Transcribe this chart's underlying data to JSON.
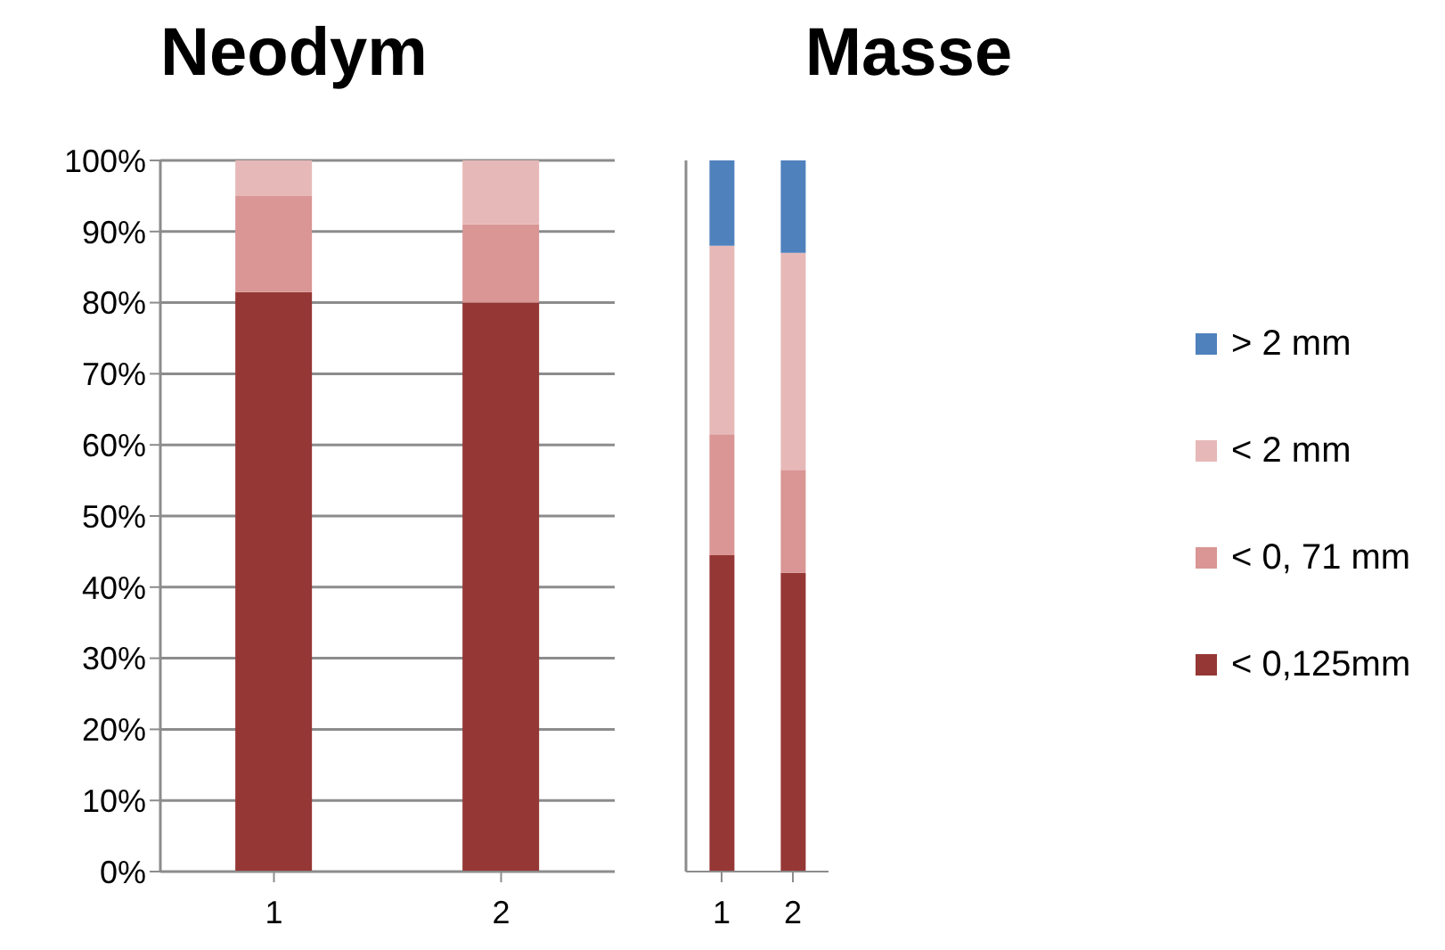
{
  "chart_data": [
    {
      "type": "bar",
      "title": "Neodym",
      "stacked": true,
      "categories": [
        "1",
        "2"
      ],
      "ylim": [
        0,
        100
      ],
      "yticks": [
        {
          "value": 0,
          "label": "0%"
        },
        {
          "value": 10,
          "label": "10%"
        },
        {
          "value": 20,
          "label": "20%"
        },
        {
          "value": 30,
          "label": "30%"
        },
        {
          "value": 40,
          "label": "40%"
        },
        {
          "value": 50,
          "label": "50%"
        },
        {
          "value": 60,
          "label": "60%"
        },
        {
          "value": 70,
          "label": "70%"
        },
        {
          "value": 80,
          "label": "80%"
        },
        {
          "value": 90,
          "label": "90%"
        },
        {
          "value": 100,
          "label": "100%"
        }
      ],
      "grid": "y",
      "series": [
        {
          "color": "#953735",
          "values": [
            81.5,
            80
          ]
        },
        {
          "color": "#d99694",
          "values": [
            13.5,
            11
          ]
        },
        {
          "color": "#e6b9b8",
          "values": [
            5,
            9
          ]
        }
      ]
    },
    {
      "type": "bar",
      "title": "Masse",
      "stacked": true,
      "categories": [
        "1",
        "2"
      ],
      "ylim": [
        0,
        100
      ],
      "yticks": [
        {
          "value": 0,
          "label": null
        },
        {
          "value": 10,
          "label": null
        },
        {
          "value": 20,
          "label": null
        },
        {
          "value": 30,
          "label": null
        },
        {
          "value": 40,
          "label": null
        },
        {
          "value": 50,
          "label": null
        },
        {
          "value": 60,
          "label": null
        },
        {
          "value": 70,
          "label": null
        },
        {
          "value": 80,
          "label": null
        },
        {
          "value": 90,
          "label": null
        },
        {
          "value": 100,
          "label": null
        }
      ],
      "tick_labels": "x",
      "grid": "y",
      "legend": "right",
      "series": [
        {
          "name": "< 0,125mm",
          "color": "#953735",
          "values": [
            44.5,
            42
          ]
        },
        {
          "name": "< 0, 71 mm",
          "color": "#d99694",
          "values": [
            17,
            14.5
          ]
        },
        {
          "name": "< 2 mm",
          "color": "#e6b9b8",
          "values": [
            26.5,
            30.5
          ]
        },
        {
          "name": "> 2 mm",
          "color": "#4f81bd",
          "values": [
            12,
            13
          ]
        }
      ]
    }
  ]
}
